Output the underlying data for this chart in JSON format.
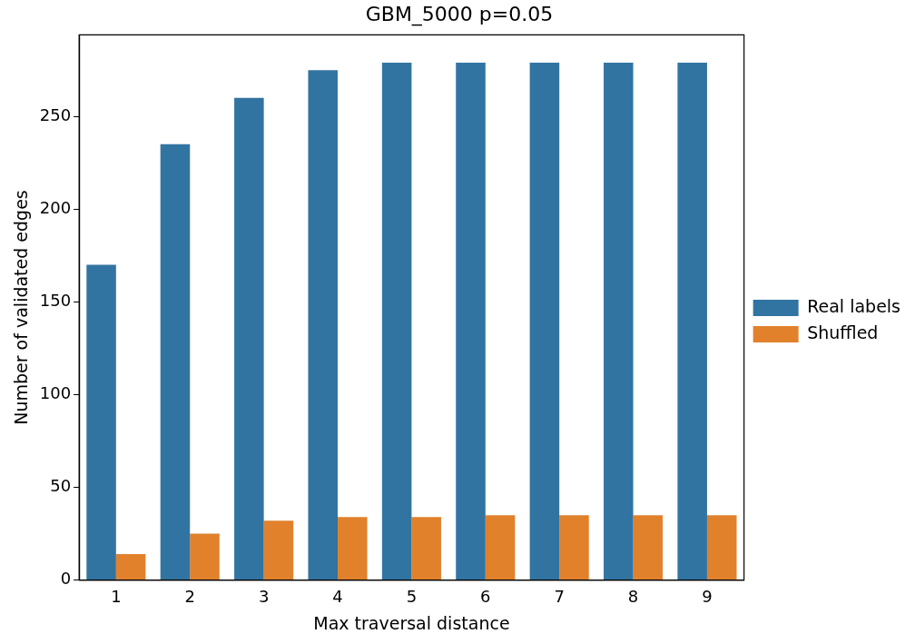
{
  "chart_data": {
    "type": "bar",
    "title": "GBM_5000 p=0.05",
    "xlabel": "Max traversal distance",
    "ylabel": "Number of validated edges",
    "categories": [
      "1",
      "2",
      "3",
      "4",
      "5",
      "6",
      "7",
      "8",
      "9"
    ],
    "series": [
      {
        "name": "Real labels",
        "color": "#3274a1",
        "values": [
          170,
          235,
          260,
          275,
          279,
          279,
          279,
          279,
          279
        ]
      },
      {
        "name": "Shuffled",
        "color": "#e1812c",
        "values": [
          14,
          25,
          32,
          34,
          34,
          35,
          35,
          35,
          35
        ]
      }
    ],
    "ylim": [
      0,
      294
    ],
    "yticks": [
      0,
      50,
      100,
      150,
      200,
      250
    ],
    "grid": false,
    "legend": "right"
  }
}
